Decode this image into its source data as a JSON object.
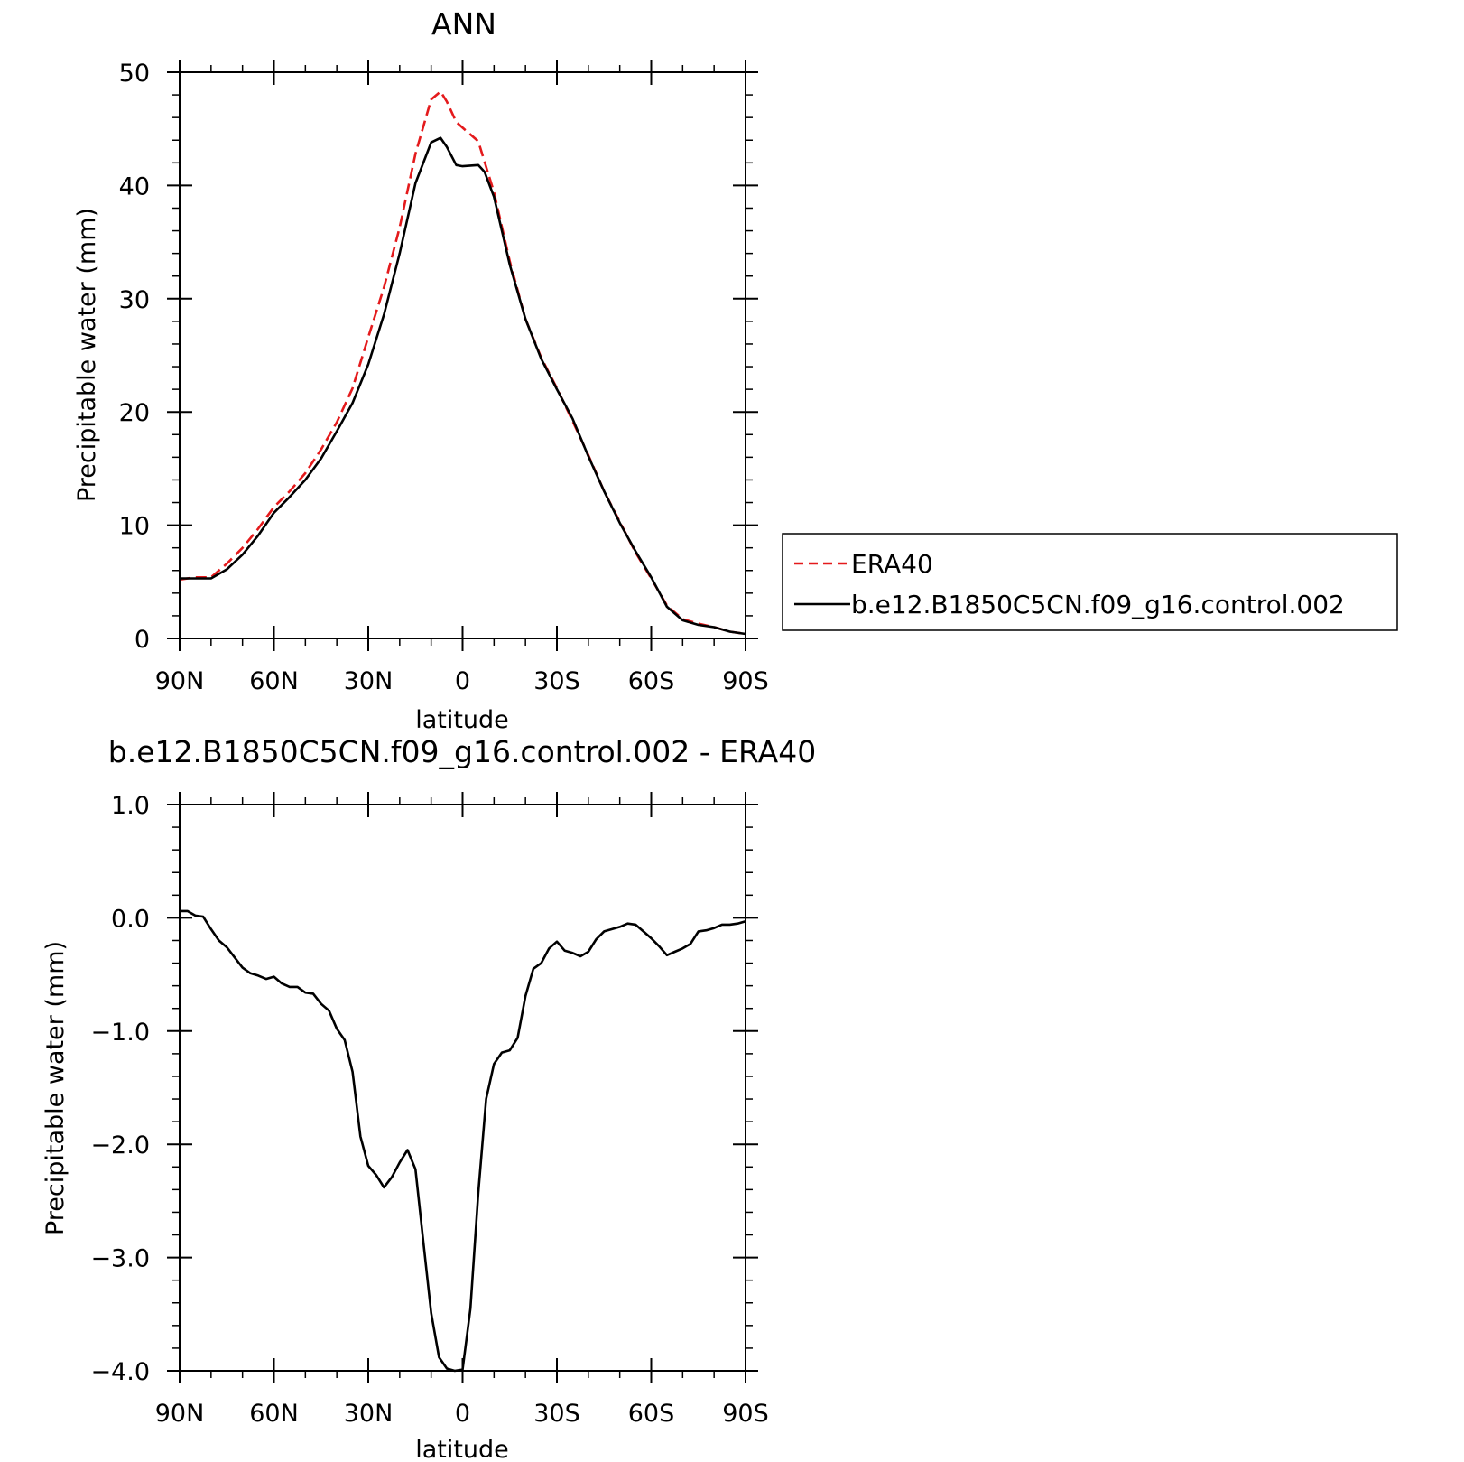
{
  "chart_data": [
    {
      "type": "line",
      "title": "ANN",
      "xlabel": "latitude",
      "ylabel": "Precipitable water (mm)",
      "xlim": [
        90,
        -90
      ],
      "ylim": [
        0,
        50
      ],
      "xticks": [
        90,
        60,
        30,
        0,
        -30,
        -60,
        -90
      ],
      "xtick_labels": [
        "90N",
        "60N",
        "30N",
        "0",
        "30S",
        "60S",
        "90S"
      ],
      "yticks": [
        0,
        10,
        20,
        30,
        40,
        50
      ],
      "ytick_labels": [
        "0",
        "10",
        "20",
        "30",
        "40",
        "50"
      ],
      "legend_position": "right",
      "series": [
        {
          "name": "ERA40",
          "color": "#e41a1c",
          "dash": "dashed",
          "x": [
            90,
            85,
            80,
            75,
            70,
            65,
            60,
            55,
            50,
            45,
            40,
            35,
            30,
            25,
            20,
            15,
            10,
            7,
            5,
            2,
            0,
            -5,
            -10,
            -15,
            -20,
            -25,
            -30,
            -35,
            -40,
            -45,
            -50,
            -55,
            -60,
            -65,
            -70,
            -75,
            -80,
            -85,
            -90
          ],
          "y": [
            5.2,
            5.4,
            5.4,
            6.6,
            8.0,
            9.7,
            11.6,
            13.0,
            14.6,
            16.7,
            19.1,
            22.1,
            26.6,
            31.0,
            36.3,
            42.8,
            47.6,
            48.3,
            47.4,
            45.6,
            45.1,
            43.9,
            39.4,
            33.3,
            28.2,
            24.8,
            22.1,
            19.2,
            16.2,
            13.0,
            10.3,
            7.6,
            5.3,
            2.9,
            1.7,
            1.3,
            1.0,
            0.6,
            0.4
          ]
        },
        {
          "name": "b.e12.B1850C5CN.f09_g16.control.002",
          "color": "#000000",
          "dash": "solid",
          "x": [
            90,
            85,
            80,
            75,
            70,
            65,
            60,
            55,
            50,
            45,
            40,
            35,
            30,
            25,
            20,
            15,
            10,
            7,
            5,
            2,
            0,
            -5,
            -7,
            -10,
            -15,
            -20,
            -25,
            -30,
            -35,
            -40,
            -45,
            -50,
            -55,
            -60,
            -65,
            -70,
            -75,
            -80,
            -85,
            -90
          ],
          "y": [
            5.3,
            5.3,
            5.3,
            6.1,
            7.4,
            9.1,
            11.1,
            12.5,
            14.0,
            15.9,
            18.3,
            20.8,
            24.2,
            28.6,
            34.0,
            40.2,
            43.8,
            44.2,
            43.4,
            41.8,
            41.7,
            41.8,
            41.2,
            39.0,
            33.0,
            28.2,
            24.7,
            22.0,
            19.4,
            16.1,
            13.0,
            10.2,
            7.7,
            5.4,
            2.8,
            1.6,
            1.2,
            1.0,
            0.6,
            0.4
          ]
        }
      ]
    },
    {
      "type": "line",
      "title": "b.e12.B1850C5CN.f09_g16.control.002 - ERA40",
      "xlabel": "latitude",
      "ylabel": "Precipitable water (mm)",
      "xlim": [
        90,
        -90
      ],
      "ylim": [
        -4.0,
        1.0
      ],
      "xticks": [
        90,
        60,
        30,
        0,
        -30,
        -60,
        -90
      ],
      "xtick_labels": [
        "90N",
        "60N",
        "30N",
        "0",
        "30S",
        "60S",
        "90S"
      ],
      "yticks": [
        -4.0,
        -3.0,
        -2.0,
        -1.0,
        0.0,
        1.0
      ],
      "ytick_labels": [
        "−4.0",
        "−3.0",
        "−2.0",
        "−1.0",
        "0.0",
        "1.0"
      ],
      "series": [
        {
          "name": "",
          "color": "#000000",
          "dash": "solid",
          "x": [
            90,
            87.5,
            85,
            82.5,
            80,
            77.5,
            75,
            72.5,
            70,
            67.5,
            65,
            62.5,
            60,
            57.5,
            55,
            52.5,
            50,
            47.5,
            45,
            42.5,
            40,
            37.5,
            35,
            32.5,
            30,
            27.5,
            25,
            22.5,
            20,
            17.5,
            15,
            12.5,
            10,
            7.5,
            5,
            2.5,
            0,
            -2.5,
            -5,
            -7.5,
            -10,
            -12.5,
            -15,
            -17.5,
            -20,
            -22.5,
            -25,
            -27.5,
            -30,
            -32.5,
            -35,
            -37.5,
            -40,
            -42.5,
            -45,
            -47.5,
            -50,
            -52.5,
            -55,
            -57.5,
            -60,
            -62.5,
            -65,
            -67.5,
            -70,
            -72.5,
            -75,
            -77.5,
            -80,
            -82.5,
            -85,
            -87.5,
            -90
          ],
          "y": [
            0.06,
            0.06,
            0.02,
            0.01,
            -0.1,
            -0.2,
            -0.26,
            -0.35,
            -0.44,
            -0.49,
            -0.51,
            -0.54,
            -0.52,
            -0.58,
            -0.61,
            -0.61,
            -0.66,
            -0.67,
            -0.76,
            -0.82,
            -0.98,
            -1.08,
            -1.36,
            -1.93,
            -2.19,
            -2.27,
            -2.38,
            -2.29,
            -2.16,
            -2.05,
            -2.22,
            -2.86,
            -3.49,
            -3.88,
            -3.98,
            -4.0,
            -3.99,
            -3.45,
            -2.43,
            -1.6,
            -1.29,
            -1.19,
            -1.17,
            -1.06,
            -0.69,
            -0.45,
            -0.4,
            -0.27,
            -0.21,
            -0.29,
            -0.31,
            -0.34,
            -0.3,
            -0.19,
            -0.12,
            -0.1,
            -0.08,
            -0.05,
            -0.06,
            -0.12,
            -0.18,
            -0.25,
            -0.33,
            -0.3,
            -0.27,
            -0.23,
            -0.12,
            -0.11,
            -0.09,
            -0.06,
            -0.06,
            -0.05,
            -0.03
          ]
        }
      ]
    }
  ]
}
